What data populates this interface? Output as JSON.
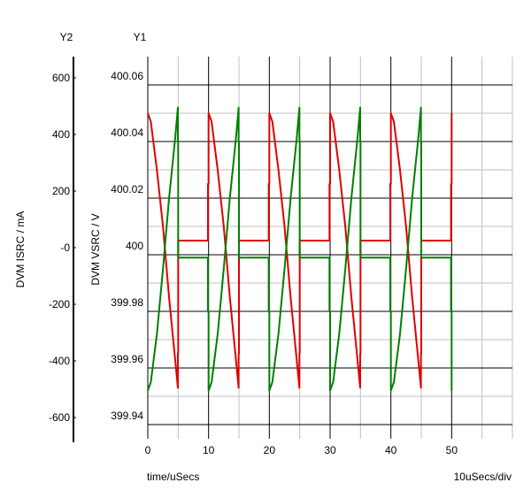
{
  "chart_data": {
    "type": "line",
    "title": "",
    "x_axis": {
      "label": "time/uSecs",
      "range": [
        0,
        60
      ],
      "ticks": [
        0,
        10,
        20,
        30,
        40,
        50
      ],
      "minor_step": 5,
      "division_label": "10uSecs/div"
    },
    "y1_axis": {
      "name": "Y1",
      "label": "DVM VSRC / V",
      "range": [
        399.935,
        400.07
      ],
      "ticks": [
        399.94,
        399.96,
        399.98,
        400,
        400.02,
        400.04,
        400.06
      ],
      "tick_labels": [
        "399.94",
        "399.96",
        "399.98",
        "400",
        "400.02",
        "400.04",
        "400.06"
      ]
    },
    "y2_axis": {
      "name": "Y2",
      "label": "DVM ISRC / mA",
      "range": [
        -675,
        675
      ],
      "ticks": [
        -600,
        -400,
        -200,
        0,
        200,
        400,
        600
      ],
      "tick_labels": [
        "-600",
        "-400",
        "-200",
        "-0",
        "200",
        "400",
        "600"
      ]
    },
    "grid": true,
    "series": [
      {
        "color": "#e00000",
        "axis": "y1",
        "x": [
          0,
          0.5,
          1.5,
          2.5,
          3.5,
          4.5,
          4.95,
          4.95,
          5.0,
          5.0,
          9.9,
          9.9,
          10,
          10,
          10.5,
          11.5,
          12.5,
          13.5,
          14.5,
          14.95,
          14.95,
          15.0,
          15.0,
          19.9,
          19.9,
          20,
          20,
          20.5,
          21.5,
          22.5,
          23.5,
          24.5,
          24.95,
          24.95,
          25.0,
          25.0,
          29.9,
          29.9,
          30,
          30,
          30.5,
          31.5,
          32.5,
          33.5,
          34.5,
          34.95,
          34.95,
          35.0,
          35.0,
          39.9,
          39.9,
          40,
          40,
          40.5,
          41.5,
          42.5,
          43.5,
          44.5,
          44.95,
          44.95,
          45.0,
          45.0,
          49.9,
          49.9,
          50,
          50
        ],
        "y": [
          400.05,
          400.047,
          400.03,
          400.01,
          399.985,
          399.963,
          399.953,
          399.965,
          399.965,
          400.005,
          400.005,
          400.025,
          400.025,
          400.05,
          400.047,
          400.03,
          400.01,
          399.985,
          399.963,
          399.953,
          399.965,
          399.965,
          400.005,
          400.005,
          400.025,
          400.025,
          400.05,
          400.047,
          400.03,
          400.01,
          399.985,
          399.963,
          399.953,
          399.965,
          399.965,
          400.005,
          400.005,
          400.025,
          400.025,
          400.05,
          400.047,
          400.03,
          400.01,
          399.985,
          399.963,
          399.953,
          399.965,
          399.965,
          400.005,
          400.005,
          400.025,
          400.025,
          400.05,
          400.047,
          400.03,
          400.01,
          399.985,
          399.963,
          399.953,
          399.965,
          399.965,
          400.005,
          400.005,
          400.025,
          400.025,
          400.05
        ]
      },
      {
        "color": "#008000",
        "axis": "y1",
        "x": [
          0,
          0.5,
          1.5,
          2.5,
          3.5,
          4.5,
          4.95,
          4.95,
          5.0,
          5.0,
          9.9,
          9.9,
          10,
          10,
          10.5,
          11.5,
          12.5,
          13.5,
          14.5,
          14.95,
          14.95,
          15.0,
          15.0,
          19.9,
          19.9,
          20,
          20,
          20.5,
          21.5,
          22.5,
          23.5,
          24.5,
          24.95,
          24.95,
          25.0,
          25.0,
          29.9,
          29.9,
          30,
          30,
          30.5,
          31.5,
          32.5,
          33.5,
          34.5,
          34.95,
          34.95,
          35.0,
          35.0,
          39.9,
          39.9,
          40,
          40,
          40.5,
          41.5,
          42.5,
          43.5,
          44.5,
          44.95,
          44.95,
          45.0,
          45.0,
          49.9,
          49.9,
          50,
          50
        ],
        "y": [
          399.952,
          399.955,
          399.972,
          399.995,
          400.02,
          400.041,
          400.052,
          400.04,
          400.04,
          399.999,
          399.999,
          399.98,
          399.98,
          399.952,
          399.955,
          399.972,
          399.995,
          400.02,
          400.041,
          400.052,
          400.04,
          400.04,
          399.999,
          399.999,
          399.98,
          399.98,
          399.952,
          399.955,
          399.972,
          399.995,
          400.02,
          400.041,
          400.052,
          400.04,
          400.04,
          399.999,
          399.999,
          399.98,
          399.98,
          399.952,
          399.955,
          399.972,
          399.995,
          400.02,
          400.041,
          400.052,
          400.04,
          400.04,
          399.999,
          399.999,
          399.98,
          399.98,
          399.952,
          399.955,
          399.972,
          399.995,
          400.02,
          400.041,
          400.052,
          400.04,
          400.04,
          399.999,
          399.999,
          399.98,
          399.98,
          399.952
        ]
      }
    ]
  }
}
